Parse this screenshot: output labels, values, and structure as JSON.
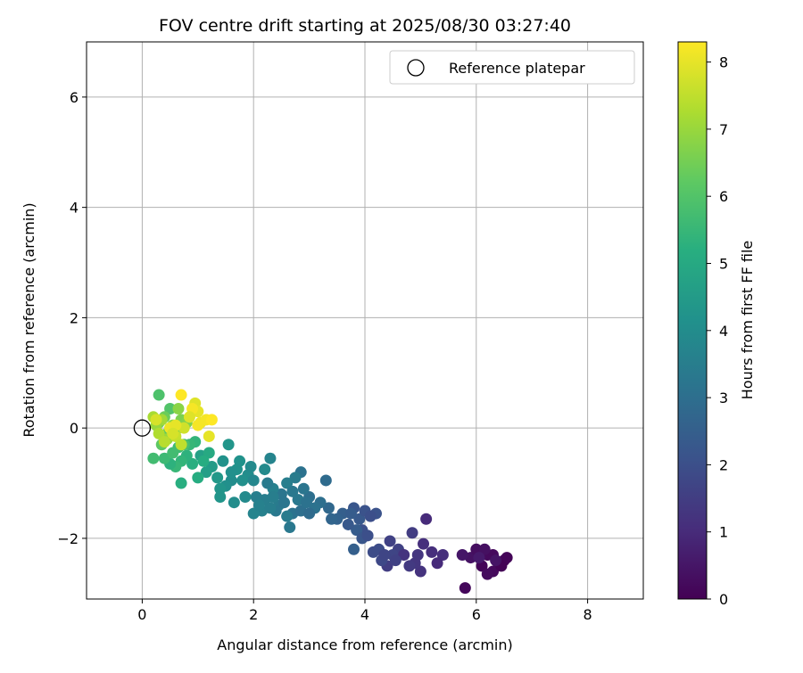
{
  "chart_data": {
    "type": "scatter",
    "title": "FOV centre drift starting at 2025/08/30 03:27:40",
    "xlabel": "Angular distance from reference (arcmin)",
    "ylabel": "Rotation from reference (arcmin)",
    "xlim": [
      -1,
      9
    ],
    "ylim": [
      -3.1,
      7
    ],
    "xticks": [
      0,
      2,
      4,
      6,
      8
    ],
    "yticks": [
      -2,
      0,
      2,
      4,
      6
    ],
    "ytick_labels": [
      "−2",
      "0",
      "2",
      "4",
      "6"
    ],
    "grid": true,
    "legend": {
      "placement": "top-right",
      "entries": [
        "Reference platepar"
      ]
    },
    "reference_point": {
      "x": 0,
      "y": 0,
      "marker": "open-circle"
    },
    "colorbar": {
      "label": "Hours from first FF file",
      "range": [
        0,
        8.3
      ],
      "ticks": [
        0,
        1,
        2,
        3,
        4,
        5,
        6,
        7,
        8
      ],
      "colormap": "viridis"
    },
    "series": [
      {
        "color_by": "hours",
        "points": [
          [
            6.5,
            -2.4,
            0.1
          ],
          [
            6.3,
            -2.3,
            0.2
          ],
          [
            6.1,
            -2.5,
            0.1
          ],
          [
            6.4,
            -2.45,
            0.3
          ],
          [
            5.9,
            -2.35,
            0.4
          ],
          [
            6.2,
            -2.3,
            0.2
          ],
          [
            6.0,
            -2.2,
            0.3
          ],
          [
            6.55,
            -2.35,
            0.1
          ],
          [
            6.3,
            -2.6,
            0.2
          ],
          [
            5.8,
            -2.9,
            0.15
          ],
          [
            6.2,
            -2.65,
            0.25
          ],
          [
            5.75,
            -2.3,
            0.5
          ],
          [
            6.45,
            -2.5,
            0.05
          ],
          [
            6.15,
            -2.2,
            0.35
          ],
          [
            6.35,
            -2.4,
            0.45
          ],
          [
            6.05,
            -2.35,
            0.6
          ],
          [
            5.1,
            -1.65,
            1.0
          ],
          [
            5.4,
            -2.3,
            1.1
          ],
          [
            5.3,
            -2.45,
            1.0
          ],
          [
            5.0,
            -2.6,
            1.2
          ],
          [
            4.9,
            -2.45,
            1.3
          ],
          [
            4.8,
            -2.5,
            1.4
          ],
          [
            5.05,
            -2.1,
            1.1
          ],
          [
            4.85,
            -1.9,
            1.5
          ],
          [
            4.6,
            -2.2,
            1.6
          ],
          [
            4.5,
            -2.3,
            1.7
          ],
          [
            4.4,
            -2.5,
            1.5
          ],
          [
            4.3,
            -2.4,
            1.8
          ],
          [
            4.25,
            -2.2,
            1.9
          ],
          [
            4.45,
            -2.05,
            1.6
          ],
          [
            4.7,
            -2.3,
            1.2
          ],
          [
            4.95,
            -2.3,
            1.3
          ],
          [
            5.2,
            -2.25,
            1.1
          ],
          [
            4.35,
            -2.3,
            1.7
          ],
          [
            4.55,
            -2.4,
            1.6
          ],
          [
            4.15,
            -2.25,
            1.9
          ],
          [
            3.95,
            -1.85,
            2.0
          ],
          [
            4.2,
            -1.55,
            2.1
          ],
          [
            3.8,
            -1.45,
            2.2
          ],
          [
            3.9,
            -1.65,
            2.3
          ],
          [
            4.0,
            -1.5,
            2.1
          ],
          [
            4.1,
            -1.6,
            2.0
          ],
          [
            3.85,
            -1.85,
            2.4
          ],
          [
            3.95,
            -2.0,
            2.2
          ],
          [
            3.8,
            -2.2,
            2.5
          ],
          [
            3.6,
            -1.55,
            2.5
          ],
          [
            3.5,
            -1.65,
            2.6
          ],
          [
            3.7,
            -1.75,
            2.3
          ],
          [
            4.05,
            -1.95,
            2.0
          ],
          [
            3.75,
            -1.55,
            2.4
          ],
          [
            3.35,
            -1.45,
            2.8
          ],
          [
            3.4,
            -1.65,
            2.7
          ],
          [
            3.3,
            -0.95,
            2.9
          ],
          [
            3.2,
            -1.35,
            3.0
          ],
          [
            3.1,
            -1.45,
            3.1
          ],
          [
            3.0,
            -1.25,
            3.0
          ],
          [
            2.85,
            -0.8,
            3.1
          ],
          [
            2.9,
            -1.1,
            3.2
          ],
          [
            2.8,
            -1.3,
            3.3
          ],
          [
            2.7,
            -1.55,
            3.1
          ],
          [
            2.65,
            -1.8,
            3.3
          ],
          [
            2.75,
            -0.9,
            3.4
          ],
          [
            2.6,
            -1.0,
            3.5
          ],
          [
            2.5,
            -1.2,
            3.2
          ],
          [
            2.45,
            -1.4,
            3.4
          ],
          [
            2.35,
            -1.1,
            3.6
          ],
          [
            2.3,
            -0.55,
            3.7
          ],
          [
            2.2,
            -1.3,
            3.5
          ],
          [
            2.15,
            -1.5,
            3.6
          ],
          [
            2.0,
            -1.55,
            3.7
          ],
          [
            2.05,
            -1.25,
            3.5
          ],
          [
            2.25,
            -1.0,
            3.4
          ],
          [
            2.4,
            -1.5,
            3.3
          ],
          [
            2.55,
            -1.35,
            3.2
          ],
          [
            2.85,
            -1.5,
            3.0
          ],
          [
            2.95,
            -1.35,
            3.1
          ],
          [
            3.0,
            -1.55,
            2.9
          ],
          [
            2.7,
            -1.15,
            3.3
          ],
          [
            2.6,
            -1.6,
            3.4
          ],
          [
            2.35,
            -1.25,
            3.5
          ],
          [
            2.1,
            -1.4,
            3.6
          ],
          [
            2.3,
            -1.45,
            3.5
          ],
          [
            2.2,
            -0.75,
            3.9
          ],
          [
            1.9,
            -0.85,
            4.0
          ],
          [
            1.8,
            -0.95,
            4.1
          ],
          [
            1.7,
            -0.75,
            4.2
          ],
          [
            1.6,
            -0.95,
            4.0
          ],
          [
            1.5,
            -1.05,
            4.1
          ],
          [
            1.4,
            -1.1,
            4.3
          ],
          [
            1.35,
            -0.9,
            4.4
          ],
          [
            1.45,
            -0.6,
            4.2
          ],
          [
            1.55,
            -0.3,
            4.3
          ],
          [
            1.65,
            -1.35,
            4.0
          ],
          [
            1.85,
            -1.25,
            3.9
          ],
          [
            2.0,
            -0.95,
            3.8
          ],
          [
            1.75,
            -0.6,
            4.2
          ],
          [
            1.25,
            -0.7,
            4.5
          ],
          [
            1.15,
            -0.8,
            4.6
          ],
          [
            1.05,
            -0.5,
            4.7
          ],
          [
            1.4,
            -1.25,
            4.3
          ],
          [
            1.6,
            -0.8,
            4.1
          ],
          [
            1.95,
            -0.7,
            3.9
          ],
          [
            1.2,
            -0.45,
            5.0
          ],
          [
            1.0,
            -0.9,
            5.1
          ],
          [
            0.9,
            -0.65,
            5.2
          ],
          [
            0.8,
            -0.5,
            5.3
          ],
          [
            0.7,
            -0.6,
            5.4
          ],
          [
            0.6,
            -0.7,
            5.5
          ],
          [
            0.5,
            -0.65,
            5.3
          ],
          [
            0.4,
            -0.55,
            5.6
          ],
          [
            0.2,
            -0.55,
            5.7
          ],
          [
            0.65,
            -0.35,
            5.6
          ],
          [
            0.7,
            -1.0,
            5.2
          ],
          [
            0.95,
            -0.25,
            5.4
          ],
          [
            1.1,
            -0.6,
            5.1
          ],
          [
            0.85,
            -0.3,
            5.5
          ],
          [
            0.55,
            -0.45,
            5.7
          ],
          [
            0.75,
            -0.3,
            5.8
          ],
          [
            0.3,
            0.6,
            5.9
          ],
          [
            0.5,
            0.35,
            6.0
          ],
          [
            0.45,
            -0.1,
            6.1
          ],
          [
            0.35,
            -0.3,
            6.2
          ],
          [
            0.3,
            0.1,
            6.3
          ],
          [
            0.4,
            0.2,
            6.4
          ],
          [
            0.6,
            -0.05,
            6.5
          ],
          [
            0.7,
            0.15,
            6.6
          ],
          [
            0.8,
            0.1,
            6.7
          ],
          [
            0.65,
            0.35,
            6.8
          ],
          [
            0.55,
            0.05,
            6.9
          ],
          [
            0.45,
            -0.2,
            7.0
          ],
          [
            0.35,
            0.15,
            7.1
          ],
          [
            0.25,
            0.05,
            7.0
          ],
          [
            0.2,
            0.2,
            7.2
          ],
          [
            0.3,
            -0.1,
            7.3
          ],
          [
            0.4,
            -0.25,
            7.4
          ],
          [
            0.5,
            0.0,
            7.5
          ],
          [
            0.6,
            -0.15,
            7.6
          ],
          [
            0.7,
            -0.3,
            7.5
          ],
          [
            0.75,
            0.0,
            7.7
          ],
          [
            0.95,
            0.45,
            7.9
          ],
          [
            1.0,
            0.3,
            8.0
          ],
          [
            1.05,
            0.1,
            8.1
          ],
          [
            0.9,
            0.35,
            8.2
          ],
          [
            0.7,
            0.6,
            8.3
          ],
          [
            1.15,
            0.15,
            8.2
          ],
          [
            1.25,
            0.15,
            8.3
          ],
          [
            1.2,
            -0.15,
            8.0
          ],
          [
            0.85,
            0.2,
            7.9
          ],
          [
            0.5,
            0.0,
            8.1
          ],
          [
            0.6,
            0.05,
            8.0
          ],
          [
            0.25,
            0.15,
            7.8
          ],
          [
            1.0,
            0.05,
            8.2
          ],
          [
            0.55,
            -0.1,
            7.8
          ]
        ]
      }
    ]
  }
}
